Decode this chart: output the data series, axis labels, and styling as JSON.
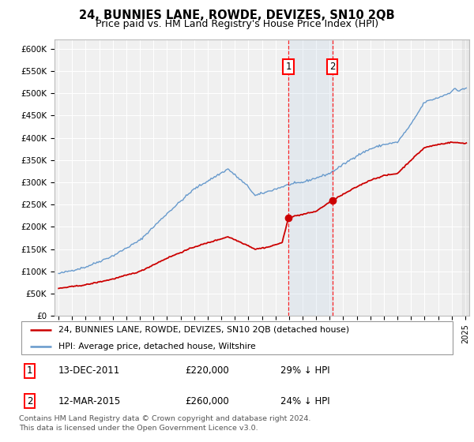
{
  "title": "24, BUNNIES LANE, ROWDE, DEVIZES, SN10 2QB",
  "subtitle": "Price paid vs. HM Land Registry's House Price Index (HPI)",
  "title_fontsize": 10.5,
  "subtitle_fontsize": 9,
  "ylim": [
    0,
    620000
  ],
  "yticks": [
    0,
    50000,
    100000,
    150000,
    200000,
    250000,
    300000,
    350000,
    400000,
    450000,
    500000,
    550000,
    600000
  ],
  "ytick_labels": [
    "£0",
    "£50K",
    "£100K",
    "£150K",
    "£200K",
    "£250K",
    "£300K",
    "£350K",
    "£400K",
    "£450K",
    "£500K",
    "£550K",
    "£600K"
  ],
  "sale1_date_num": 2011.958,
  "sale1_price": 220000,
  "sale1_label": "13-DEC-2011",
  "sale2_date_num": 2015.2,
  "sale2_price": 260000,
  "sale2_label": "12-MAR-2015",
  "legend_line1": "24, BUNNIES LANE, ROWDE, DEVIZES, SN10 2QB (detached house)",
  "legend_line2": "HPI: Average price, detached house, Wiltshire",
  "footnote": "Contains HM Land Registry data © Crown copyright and database right 2024.\nThis data is licensed under the Open Government Licence v3.0.",
  "red_color": "#cc0000",
  "blue_color": "#6699cc",
  "background_color": "#f0f0f0",
  "hpi_shading_color": "#c8d8e8",
  "xmin": 1994.7,
  "xmax": 2025.3
}
